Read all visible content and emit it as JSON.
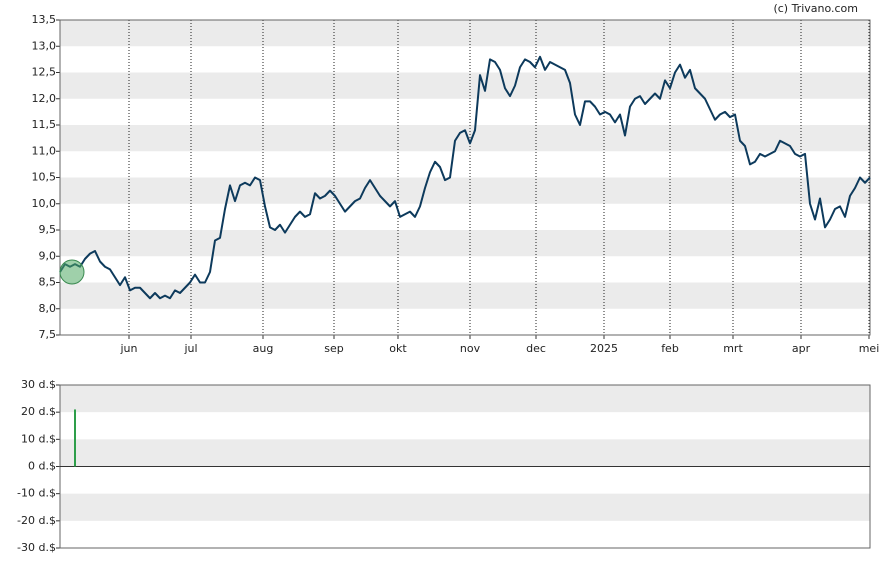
{
  "credit": "(c) Trivano.com",
  "chart_data": [
    {
      "type": "line",
      "x": [
        0,
        1,
        2,
        3,
        4,
        5,
        6,
        7,
        8,
        9,
        10,
        11,
        12,
        13,
        14,
        15,
        16,
        17,
        18,
        19,
        20,
        21,
        22,
        23,
        24,
        25,
        26,
        27,
        28,
        29,
        30,
        31,
        32,
        33,
        34,
        35,
        36,
        37,
        38,
        39,
        40,
        41,
        42,
        43,
        44,
        45,
        46,
        47,
        48,
        49,
        50,
        51,
        52,
        53,
        54,
        55,
        56,
        57,
        58,
        59,
        60,
        61,
        62,
        63,
        64,
        65,
        66,
        67,
        68,
        69,
        70,
        71,
        72,
        73,
        74,
        75,
        76,
        77,
        78,
        79,
        80,
        81,
        82,
        83,
        84,
        85,
        86,
        87,
        88,
        89,
        90,
        91,
        92,
        93,
        94,
        95,
        96,
        97,
        98,
        99,
        100,
        101,
        102,
        103,
        104,
        105,
        106,
        107,
        108,
        109,
        110,
        111,
        112,
        113,
        114,
        115,
        116,
        117,
        118,
        119,
        120,
        121,
        122,
        123,
        124,
        125,
        126,
        127,
        128,
        129,
        130,
        131,
        132,
        133,
        134,
        135,
        136,
        137,
        138,
        139,
        140,
        141,
        142,
        143,
        144,
        145,
        146,
        147,
        148,
        149,
        150,
        151,
        152,
        153,
        154,
        155,
        156,
        157,
        158,
        159,
        160,
        161,
        162
      ],
      "series": [
        {
          "color": "#0d3a5c",
          "values": [
            8.7,
            8.85,
            8.8,
            8.85,
            8.8,
            8.95,
            9.05,
            9.1,
            8.9,
            8.8,
            8.75,
            8.6,
            8.45,
            8.6,
            8.35,
            8.4,
            8.4,
            8.3,
            8.2,
            8.3,
            8.2,
            8.25,
            8.2,
            8.35,
            8.3,
            8.4,
            8.5,
            8.65,
            8.5,
            8.5,
            8.7,
            9.3,
            9.35,
            9.9,
            10.35,
            10.05,
            10.35,
            10.4,
            10.35,
            10.5,
            10.45,
            9.95,
            9.55,
            9.5,
            9.6,
            9.45,
            9.6,
            9.75,
            9.85,
            9.75,
            9.8,
            10.2,
            10.1,
            10.15,
            10.25,
            10.15,
            10.0,
            9.85,
            9.95,
            10.05,
            10.1,
            10.3,
            10.45,
            10.3,
            10.15,
            10.05,
            9.95,
            10.05,
            9.75,
            9.8,
            9.85,
            9.75,
            9.95,
            10.3,
            10.6,
            10.8,
            10.7,
            10.45,
            10.5,
            11.2,
            11.35,
            11.4,
            11.15,
            11.4,
            12.45,
            12.15,
            12.75,
            12.7,
            12.55,
            12.2,
            12.05,
            12.25,
            12.6,
            12.75,
            12.7,
            12.6,
            12.8,
            12.55,
            12.7,
            12.65,
            12.6,
            12.55,
            12.3,
            11.7,
            11.5,
            11.95,
            11.95,
            11.85,
            11.7,
            11.75,
            11.7,
            11.55,
            11.7,
            11.3,
            11.85,
            12.0,
            12.05,
            11.9,
            12.0,
            12.1,
            12.0,
            12.35,
            12.2,
            12.5,
            12.65,
            12.4,
            12.55,
            12.2,
            12.1,
            12.0,
            11.8,
            11.6,
            11.7,
            11.75,
            11.65,
            11.7,
            11.2,
            11.1,
            10.75,
            10.8,
            10.95,
            10.9,
            10.95,
            11.0,
            11.2,
            11.15,
            11.1,
            10.95,
            10.9,
            10.95,
            10.0,
            9.7,
            10.1,
            9.55,
            9.7,
            9.9,
            9.95,
            9.75,
            10.15,
            10.3,
            10.5,
            10.4,
            10.5
          ]
        }
      ],
      "xlim": [
        0,
        162
      ],
      "xticks": [
        {
          "value": 13.8,
          "label": "jun"
        },
        {
          "value": 26.2,
          "label": "jul"
        },
        {
          "value": 40.6,
          "label": "aug"
        },
        {
          "value": 54.8,
          "label": "sep"
        },
        {
          "value": 67.6,
          "label": "okt"
        },
        {
          "value": 82,
          "label": "nov"
        },
        {
          "value": 95.2,
          "label": "dec"
        },
        {
          "value": 108.8,
          "label": "2025"
        },
        {
          "value": 122,
          "label": "feb"
        },
        {
          "value": 134.6,
          "label": "mrt"
        },
        {
          "value": 148.2,
          "label": "apr"
        },
        {
          "value": 161.8,
          "label": "mei"
        }
      ],
      "ylim": [
        7.5,
        13.5
      ],
      "yticks": [
        {
          "value": 7.5,
          "label": "7,5"
        },
        {
          "value": 8,
          "label": "8,0"
        },
        {
          "value": 8.5,
          "label": "8,5"
        },
        {
          "value": 9,
          "label": "9,0"
        },
        {
          "value": 9.5,
          "label": "9,5"
        },
        {
          "value": 10,
          "label": "10,0"
        },
        {
          "value": 10.5,
          "label": "10,5"
        },
        {
          "value": 11,
          "label": "11,0"
        },
        {
          "value": 11.5,
          "label": "11,5"
        },
        {
          "value": 12,
          "label": "12,0"
        },
        {
          "value": 12.5,
          "label": "12,5"
        },
        {
          "value": 13,
          "label": "13,0"
        },
        {
          "value": 13.5,
          "label": "13,5"
        }
      ]
    },
    {
      "type": "bar",
      "x": [
        3
      ],
      "values": [
        21
      ],
      "color": "#2e9e4a",
      "xlim": [
        0,
        162
      ],
      "ylim": [
        -30,
        30
      ],
      "yticks": [
        {
          "value": -30,
          "label": "-30 d.$"
        },
        {
          "value": -20,
          "label": "-20 d.$"
        },
        {
          "value": -10,
          "label": "-10 d.$"
        },
        {
          "value": 0,
          "label": "0 d.$"
        },
        {
          "value": 10,
          "label": "10 d.$"
        },
        {
          "value": 20,
          "label": "20 d.$"
        },
        {
          "value": 30,
          "label": "30 d.$"
        }
      ]
    }
  ]
}
